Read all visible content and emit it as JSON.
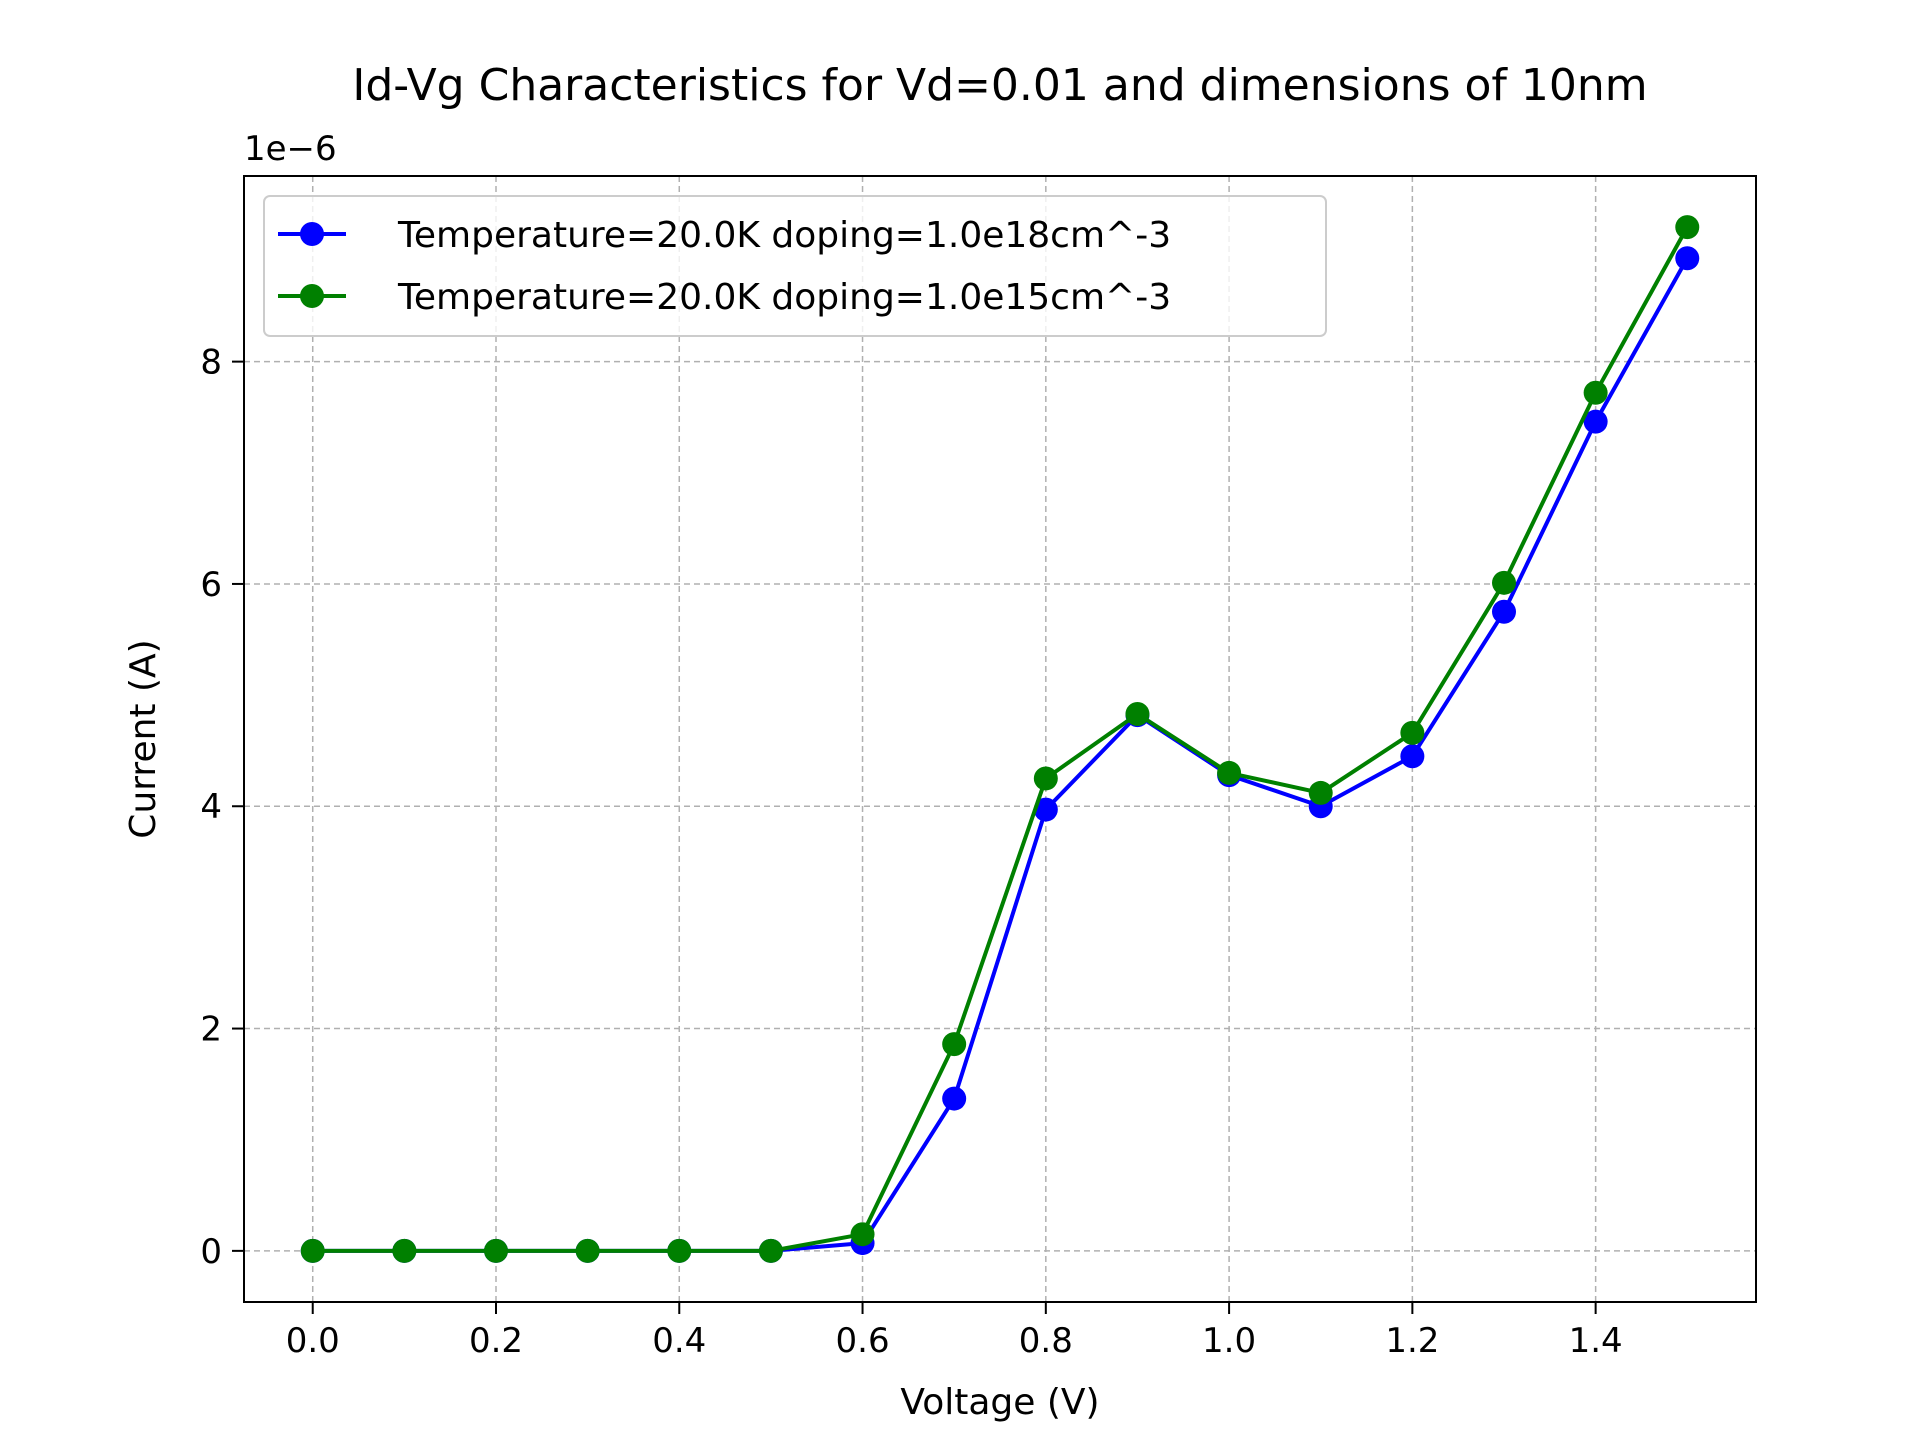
{
  "chart_data": {
    "type": "line",
    "title": "Id-Vg Characteristics for Vd=0.01 and dimensions of 10nm",
    "xlabel": "Voltage (V)",
    "ylabel": "Current (A)",
    "y_offset_label": "1e−6",
    "y_scale_factor": 1e-06,
    "xlim": [
      -0.075,
      1.575
    ],
    "ylim": [
      -0.46,
      9.67
    ],
    "xticks": [
      0.0,
      0.2,
      0.4,
      0.6,
      0.8,
      1.0,
      1.2,
      1.4
    ],
    "xtick_labels": [
      "0.0",
      "0.2",
      "0.4",
      "0.6",
      "0.8",
      "1.0",
      "1.2",
      "1.4"
    ],
    "yticks": [
      0,
      2,
      4,
      6,
      8
    ],
    "ytick_labels": [
      "0",
      "2",
      "4",
      "6",
      "8"
    ],
    "grid": true,
    "legend_position": "upper-left",
    "x": [
      0.0,
      0.1,
      0.2,
      0.3,
      0.4,
      0.5,
      0.6,
      0.7,
      0.8,
      0.9,
      1.0,
      1.1,
      1.2,
      1.3,
      1.4,
      1.5
    ],
    "series": [
      {
        "name": "Temperature=20.0K doping=1.0e18cm^-3",
        "color": "#0000ff",
        "values": [
          0.0,
          0.0,
          0.0,
          0.0,
          0.0,
          0.0,
          0.07,
          1.37,
          3.97,
          4.82,
          4.28,
          4.0,
          4.45,
          5.75,
          7.46,
          8.93
        ]
      },
      {
        "name": "Temperature=20.0K doping=1.0e15cm^-3",
        "color": "#008000",
        "values": [
          0.0,
          0.0,
          0.0,
          0.0,
          0.0,
          0.0,
          0.15,
          1.86,
          4.25,
          4.83,
          4.3,
          4.12,
          4.66,
          6.01,
          7.72,
          9.21
        ]
      }
    ]
  }
}
